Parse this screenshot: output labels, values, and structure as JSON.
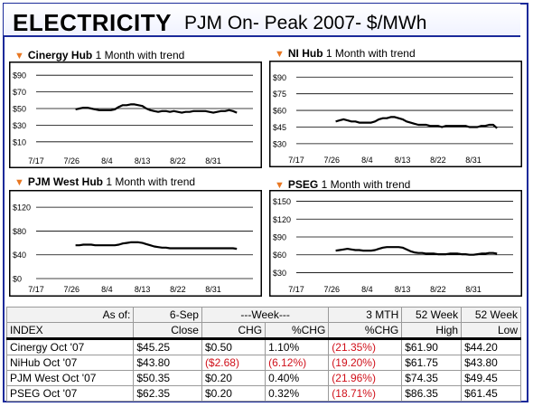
{
  "header": {
    "title": "ELECTRICITY",
    "subtitle": "PJM On- Peak 2007- $/MWh"
  },
  "colors": {
    "frame": "#1a2a9a",
    "accent_triangle": "#e87722",
    "negative": "#d0101a"
  },
  "chart_data": [
    {
      "type": "line",
      "hub": "Cinergy Hub",
      "caption": "1 Month with trend",
      "x_ticks": [
        "7/17",
        "7/26",
        "8/4",
        "8/13",
        "8/22",
        "8/31"
      ],
      "y_ticks": [
        "$90",
        "$70",
        "$50",
        "$30",
        "$10"
      ],
      "ylim": [
        0,
        100
      ],
      "x_days": [
        10,
        11,
        12,
        13,
        14,
        15,
        16,
        17,
        18,
        19,
        20,
        21,
        22,
        23,
        24,
        25,
        26,
        27,
        28,
        29,
        30,
        31,
        32,
        33,
        34,
        35,
        36,
        37,
        38,
        39,
        40,
        41,
        42,
        43,
        44,
        45,
        46,
        47,
        48,
        49,
        50,
        51
      ],
      "values": [
        49,
        50,
        51,
        51,
        50,
        49,
        48,
        48,
        48,
        48,
        49,
        52,
        54,
        54,
        55,
        55,
        54,
        53,
        50,
        48,
        47,
        46,
        47,
        47,
        46,
        47,
        46,
        45,
        46,
        46,
        47,
        47,
        47,
        47,
        46,
        45,
        46,
        47,
        47,
        48,
        47,
        45
      ]
    },
    {
      "type": "line",
      "hub": "NI Hub",
      "caption": "1 Month with trend",
      "x_ticks": [
        "7/17",
        "7/26",
        "8/4",
        "8/13",
        "8/22",
        "8/31"
      ],
      "y_ticks": [
        "$90",
        "$75",
        "$60",
        "$45",
        "$30"
      ],
      "ylim": [
        25,
        100
      ],
      "x_days": [
        10,
        11,
        12,
        13,
        14,
        15,
        16,
        17,
        18,
        19,
        20,
        21,
        22,
        23,
        24,
        25,
        26,
        27,
        28,
        29,
        30,
        31,
        32,
        33,
        34,
        35,
        36,
        37,
        38,
        39,
        40,
        41,
        42,
        43,
        44,
        45,
        46,
        47,
        48,
        49,
        50,
        51
      ],
      "values": [
        50,
        51,
        52,
        51,
        50,
        50,
        49,
        49,
        49,
        49,
        50,
        52,
        53,
        53,
        54,
        54,
        53,
        52,
        50,
        49,
        48,
        47,
        47,
        47,
        46,
        46,
        46,
        45,
        46,
        46,
        46,
        46,
        46,
        46,
        45,
        45,
        45,
        46,
        46,
        47,
        47,
        44
      ]
    },
    {
      "type": "line",
      "hub": "PJM West Hub",
      "caption": "1 Month with trend",
      "x_ticks": [
        "7/17",
        "7/26",
        "8/4",
        "8/13",
        "8/22",
        "8/31"
      ],
      "y_ticks": [
        "$120",
        "$80",
        "$40",
        "$0"
      ],
      "ylim": [
        0,
        140
      ],
      "x_days": [
        10,
        11,
        12,
        13,
        14,
        15,
        16,
        17,
        18,
        19,
        20,
        21,
        22,
        23,
        24,
        25,
        26,
        27,
        28,
        29,
        30,
        31,
        32,
        33,
        34,
        35,
        36,
        37,
        38,
        39,
        40,
        41,
        42,
        43,
        44,
        45,
        46,
        47,
        48,
        49,
        50,
        51
      ],
      "values": [
        56,
        56,
        57,
        57,
        57,
        56,
        56,
        56,
        56,
        56,
        56,
        57,
        59,
        60,
        61,
        61,
        61,
        60,
        58,
        56,
        54,
        53,
        52,
        52,
        51,
        51,
        51,
        51,
        51,
        51,
        51,
        51,
        51,
        51,
        51,
        51,
        51,
        51,
        51,
        51,
        51,
        50
      ]
    },
    {
      "type": "line",
      "hub": "PSEG",
      "caption": "1 Month with trend",
      "x_ticks": [
        "7/17",
        "7/26",
        "8/4",
        "8/13",
        "8/22",
        "8/31"
      ],
      "y_ticks": [
        "$150",
        "$120",
        "$90",
        "$60",
        "$30"
      ],
      "ylim": [
        20,
        160
      ],
      "x_days": [
        10,
        11,
        12,
        13,
        14,
        15,
        16,
        17,
        18,
        19,
        20,
        21,
        22,
        23,
        24,
        25,
        26,
        27,
        28,
        29,
        30,
        31,
        32,
        33,
        34,
        35,
        36,
        37,
        38,
        39,
        40,
        41,
        42,
        43,
        44,
        45,
        46,
        47,
        48,
        49,
        50,
        51
      ],
      "values": [
        67,
        68,
        69,
        70,
        69,
        68,
        68,
        67,
        67,
        67,
        68,
        70,
        72,
        73,
        73,
        73,
        73,
        72,
        69,
        66,
        64,
        63,
        63,
        62,
        62,
        62,
        61,
        61,
        61,
        62,
        62,
        62,
        61,
        61,
        60,
        60,
        61,
        62,
        62,
        63,
        63,
        62
      ]
    }
  ],
  "table": {
    "header1": {
      "asof_label": "As of:",
      "date": "6-Sep",
      "week": "---Week---",
      "mth": "3 MTH",
      "wk52a": "52 Week",
      "wk52b": "52 Week"
    },
    "header2": {
      "index": "INDEX",
      "close": "Close",
      "chg": "CHG",
      "pchg": "%CHG",
      "mth_pchg": "%CHG",
      "high": "High",
      "low": "Low"
    },
    "rows": [
      {
        "index": "Cinergy Oct '07",
        "close": "$45.25",
        "chg": "$0.50",
        "chg_neg": false,
        "pchg": "1.10%",
        "pchg_neg": false,
        "mth": "(21.35%)",
        "mth_neg": true,
        "high": "$61.90",
        "low": "$44.20"
      },
      {
        "index": "NiHub Oct '07",
        "close": "$43.80",
        "chg": "($2.68)",
        "chg_neg": true,
        "pchg": "(6.12%)",
        "pchg_neg": true,
        "mth": "(19.20%)",
        "mth_neg": true,
        "high": "$61.75",
        "low": "$43.80"
      },
      {
        "index": "PJM West Oct '07",
        "close": "$50.35",
        "chg": "$0.20",
        "chg_neg": false,
        "pchg": "0.40%",
        "pchg_neg": false,
        "mth": "(21.96%)",
        "mth_neg": true,
        "high": "$74.35",
        "low": "$49.45"
      },
      {
        "index": "PSEG Oct '07",
        "close": "$62.35",
        "chg": "$0.20",
        "chg_neg": false,
        "pchg": "0.32%",
        "pchg_neg": false,
        "mth": "(18.71%)",
        "mth_neg": true,
        "high": "$86.35",
        "low": "$61.45"
      }
    ]
  }
}
